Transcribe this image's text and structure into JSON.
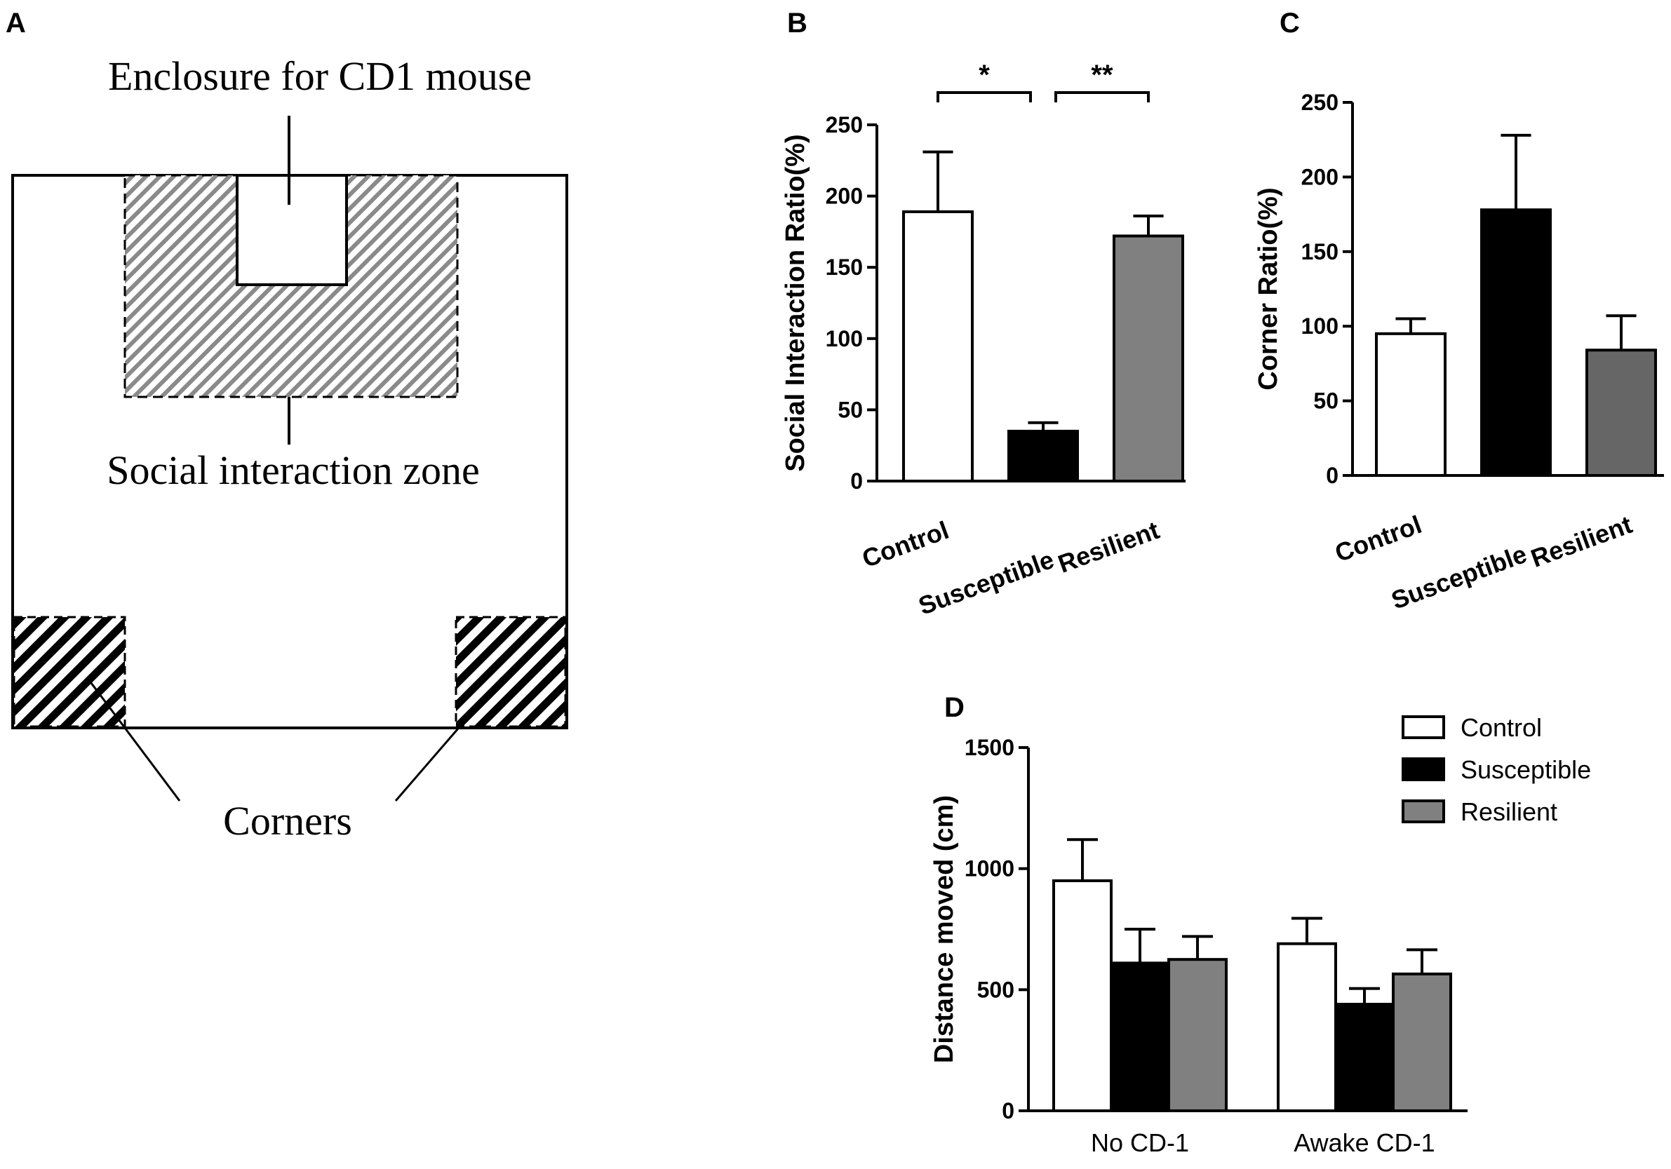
{
  "panels": {
    "A": {
      "letter": "A",
      "enclosure_label": "Enclosure for CD1 mouse",
      "zone_label": "Social interaction zone",
      "corners_label": "Corners"
    }
  },
  "chart_data": [
    {
      "id": "B",
      "letter": "B",
      "type": "bar",
      "categories": [
        "Control",
        "Susceptible",
        "Resilient"
      ],
      "values": [
        189,
        35,
        172
      ],
      "errors": [
        42,
        6,
        14
      ],
      "colors": [
        "#ffffff",
        "#000000",
        "#808080"
      ],
      "ylabel": "Social Interaction Ratio(%)",
      "ylim": [
        0,
        250
      ],
      "yticks": [
        0,
        50,
        100,
        150,
        200,
        250
      ],
      "significance": [
        {
          "from": 0,
          "to": 1,
          "label": "*"
        },
        {
          "from": 1,
          "to": 2,
          "label": "**"
        }
      ]
    },
    {
      "id": "C",
      "letter": "C",
      "type": "bar",
      "categories": [
        "Control",
        "Susceptible",
        "Resilient"
      ],
      "values": [
        95,
        178,
        84
      ],
      "errors": [
        10,
        50,
        23
      ],
      "colors": [
        "#ffffff",
        "#000000",
        "#666666"
      ],
      "ylabel": "Corner Ratio(%)",
      "ylim": [
        0,
        250
      ],
      "yticks": [
        0,
        50,
        100,
        150,
        200,
        250
      ]
    },
    {
      "id": "D",
      "letter": "D",
      "type": "bar",
      "categories": [
        "No CD-1",
        "Awake CD-1"
      ],
      "series": [
        {
          "name": "Control",
          "values": [
            950,
            690
          ],
          "errors": [
            170,
            105
          ],
          "color": "#ffffff"
        },
        {
          "name": "Susceptible",
          "values": [
            610,
            440
          ],
          "errors": [
            140,
            65
          ],
          "color": "#000000"
        },
        {
          "name": "Resilient",
          "values": [
            625,
            565
          ],
          "errors": [
            95,
            100
          ],
          "color": "#808080"
        }
      ],
      "ylabel": "Distance moved (cm)",
      "ylim": [
        0,
        1500
      ],
      "yticks": [
        0,
        500,
        1000,
        1500
      ],
      "legend_position": "top-right"
    }
  ]
}
